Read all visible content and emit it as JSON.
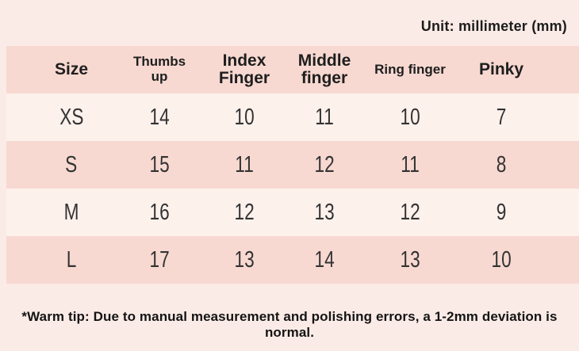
{
  "unit_label": "Unit: millimeter (mm)",
  "footnote": "*Warm tip: Due to manual measurement and polishing errors, a 1-2mm deviation is normal.",
  "table": {
    "columns": [
      {
        "label": "Size",
        "lines": [
          "Size"
        ],
        "style": "large"
      },
      {
        "label": "Thumbs up",
        "lines": [
          "Thumbs up"
        ],
        "style": "small"
      },
      {
        "label": "Index Finger",
        "lines": [
          "Index",
          "Finger"
        ],
        "style": "large"
      },
      {
        "label": "Middle finger",
        "lines": [
          "Middle",
          "finger"
        ],
        "style": "large"
      },
      {
        "label": "Ring finger",
        "lines": [
          "Ring finger"
        ],
        "style": "small"
      },
      {
        "label": "Pinky",
        "lines": [
          "Pinky"
        ],
        "style": "large"
      }
    ],
    "rows": [
      {
        "size": "XS",
        "values": [
          "14",
          "10",
          "11",
          "10",
          "7"
        ]
      },
      {
        "size": "S",
        "values": [
          "15",
          "11",
          "12",
          "11",
          "8"
        ]
      },
      {
        "size": "M",
        "values": [
          "16",
          "12",
          "13",
          "12",
          "9"
        ]
      },
      {
        "size": "L",
        "values": [
          "17",
          "13",
          "14",
          "13",
          "10"
        ]
      }
    ]
  },
  "colors": {
    "background": "#fbebe6",
    "stripe_dark": "#f7d9d1",
    "stripe_light": "#fdf1ec",
    "text": "#2b2b2b"
  }
}
